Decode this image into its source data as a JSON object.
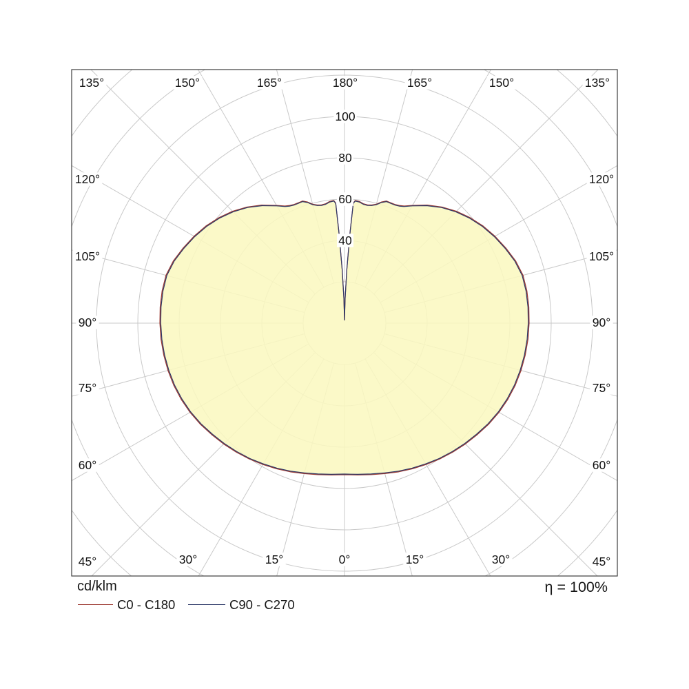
{
  "chart_data": {
    "type": "polar",
    "subtype": "photometric-intensity-distribution",
    "units_label": "cd/klm",
    "efficiency_label": "η = 100%",
    "grid": {
      "color": "#c9c9c9",
      "border_color": "#3c3c3c",
      "ring_step": 20,
      "max_ring": 180,
      "spoke_step_deg": 15
    },
    "r_axis": {
      "tick_values": [
        40,
        60,
        80,
        100
      ],
      "tick_labels": [
        "40",
        "60",
        "80",
        "100"
      ]
    },
    "angle_axis": {
      "labels_top": [
        "135°",
        "150°",
        "165°",
        "180°",
        "165°",
        "150°",
        "135°"
      ],
      "labels_left": [
        "120°",
        "105°",
        "90°",
        "75°",
        "60°",
        "45°"
      ],
      "labels_right": [
        "120°",
        "105°",
        "90°",
        "75°",
        "60°",
        "45°"
      ],
      "labels_bottom": [
        "30°",
        "15°",
        "0°",
        "15°",
        "30°"
      ]
    },
    "fill_color": "#FAF8C0",
    "fill_opacity": 0.87,
    "symmetric_about_vertical_axis": true,
    "profile_points_gamma_cdklm": [
      [
        0,
        73
      ],
      [
        5,
        73.4
      ],
      [
        10,
        74.1
      ],
      [
        15,
        75
      ],
      [
        20,
        76.2
      ],
      [
        25,
        77.4
      ],
      [
        30,
        78.6
      ],
      [
        35,
        79.9
      ],
      [
        40,
        81.1
      ],
      [
        45,
        82.3
      ],
      [
        50,
        83.5
      ],
      [
        55,
        84.8
      ],
      [
        60,
        85.9
      ],
      [
        65,
        86.8
      ],
      [
        70,
        87.5
      ],
      [
        75,
        88
      ],
      [
        80,
        88.4
      ],
      [
        85,
        88.7
      ],
      [
        90,
        88.9
      ],
      [
        95,
        89.1
      ],
      [
        100,
        89.2
      ],
      [
        105,
        89
      ],
      [
        110,
        87.7
      ],
      [
        115,
        85.7
      ],
      [
        120,
        83.7
      ],
      [
        125,
        81.5
      ],
      [
        130,
        79
      ],
      [
        135,
        76.2
      ],
      [
        140,
        73
      ],
      [
        145,
        69.4
      ],
      [
        150,
        65.5
      ],
      [
        153,
        63.3
      ],
      [
        155,
        62.5
      ],
      [
        157,
        62.1
      ],
      [
        159,
        62.1
      ],
      [
        161,
        62.2
      ],
      [
        163,
        61
      ],
      [
        165,
        59.3
      ],
      [
        167,
        58.4
      ],
      [
        169,
        58
      ],
      [
        171,
        58.2
      ],
      [
        173,
        59
      ],
      [
        175,
        59.3
      ],
      [
        175.8,
        58
      ],
      [
        176.5,
        44
      ],
      [
        177.5,
        26
      ],
      [
        178.5,
        12
      ],
      [
        179.5,
        3
      ],
      [
        180,
        1.5
      ]
    ],
    "series": [
      {
        "name": "C0 - C180",
        "color": "#9d3a32"
      },
      {
        "name": "C90 - C270",
        "color": "#2e3a69"
      }
    ]
  }
}
